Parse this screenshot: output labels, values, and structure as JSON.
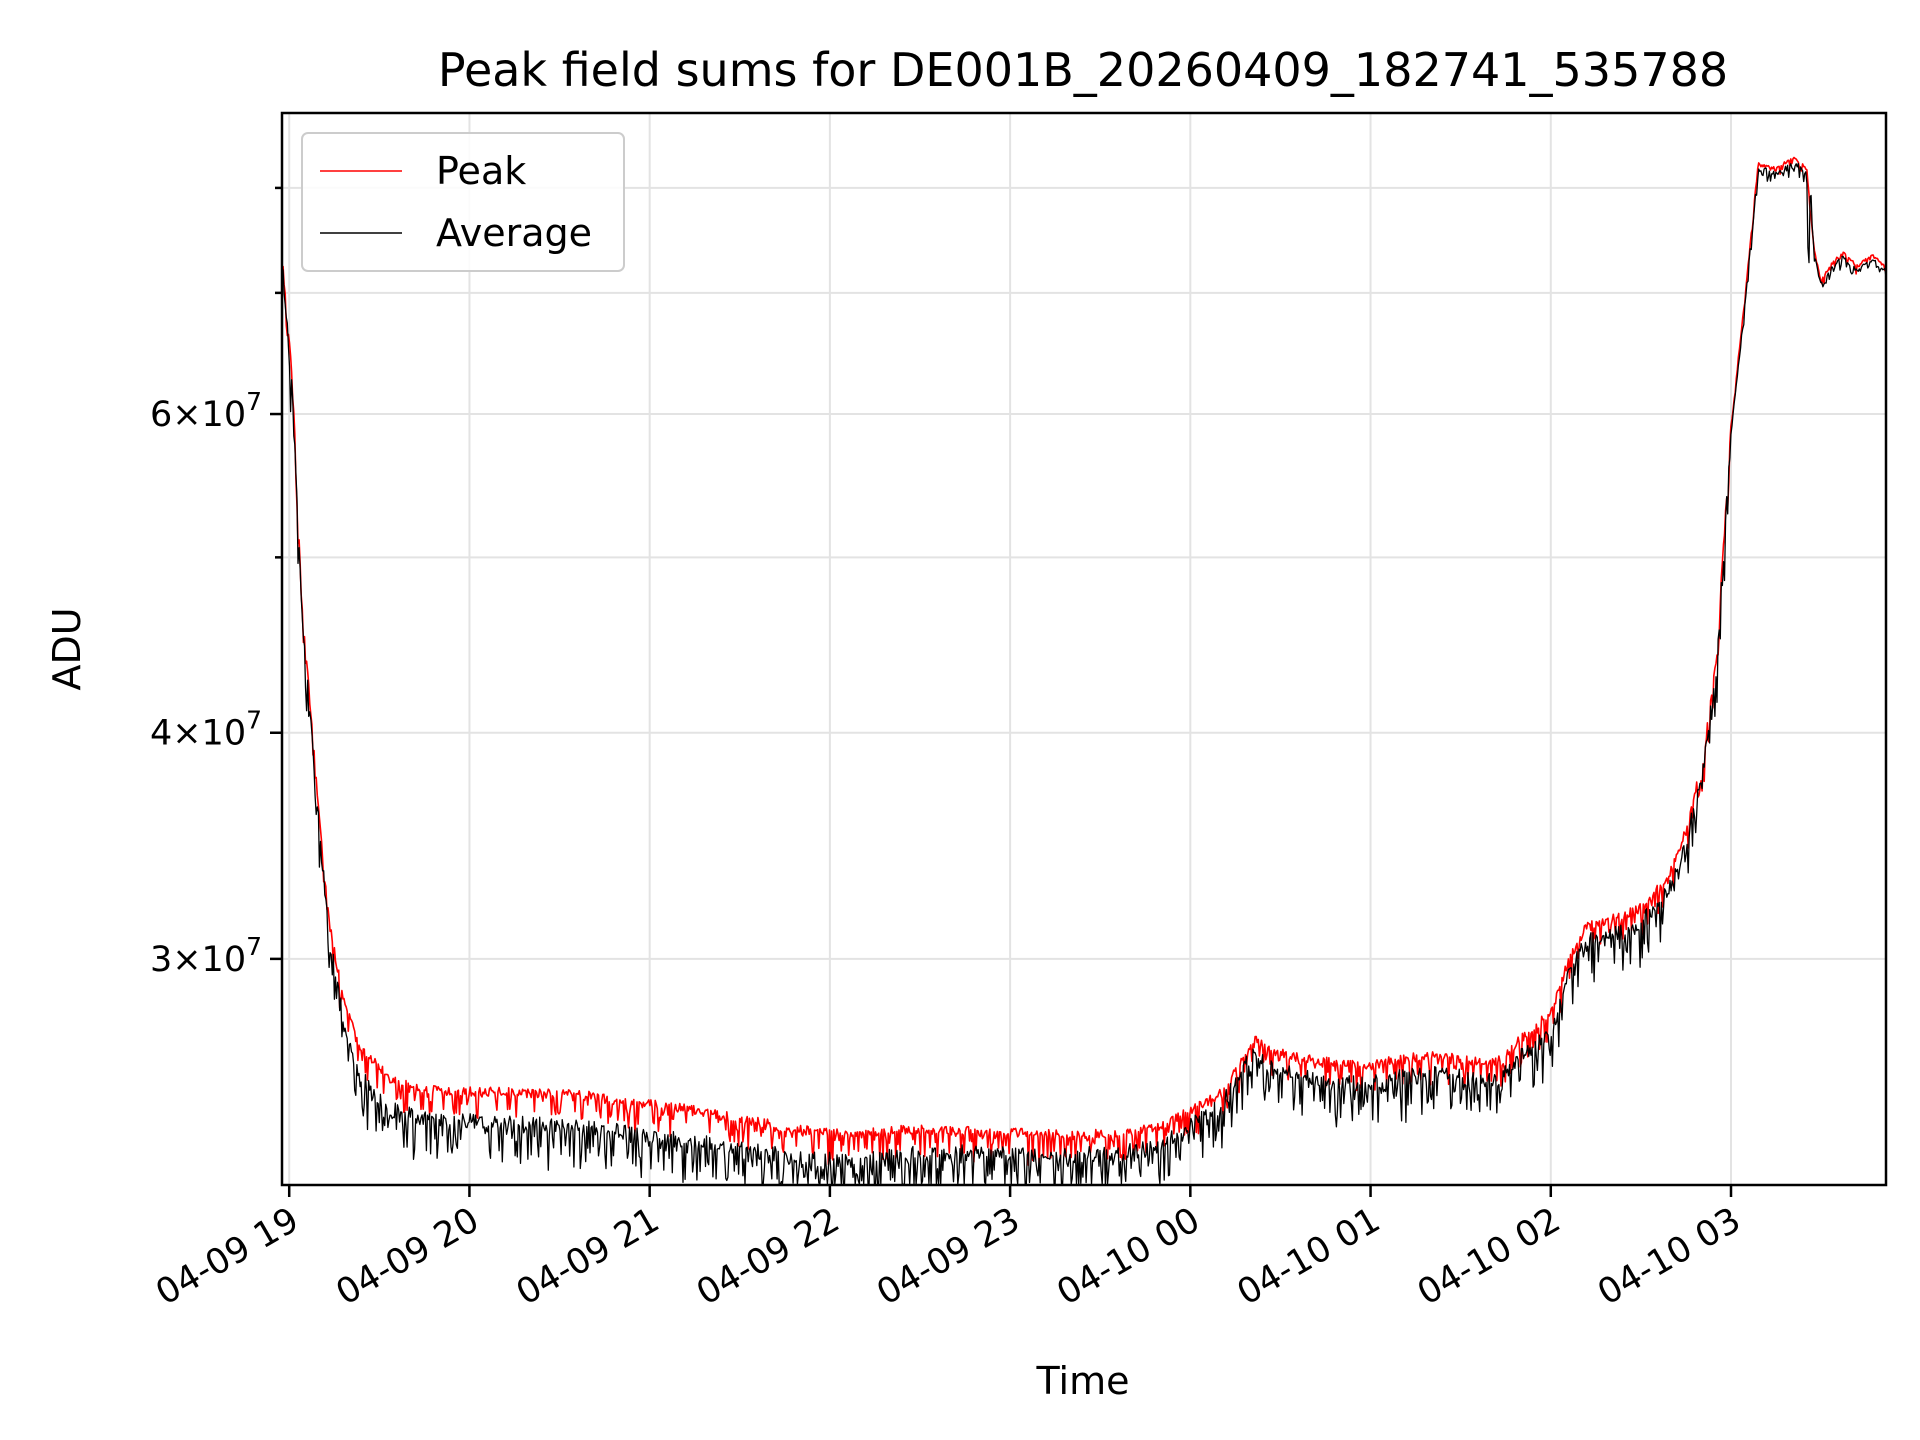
{
  "chart_data": {
    "type": "line",
    "title": "Peak field sums for DE001B_20260409_182741_535788",
    "xlabel": "Time",
    "ylabel": "ADU",
    "yscale": "log",
    "ylim": [
      22500000,
      88000000
    ],
    "xlim_hours": [
      18.96,
      27.86
    ],
    "grid": true,
    "legend_position": "upper-left",
    "x_ticks": [
      {
        "hour": 19,
        "label": "04-09 19"
      },
      {
        "hour": 20,
        "label": "04-09 20"
      },
      {
        "hour": 21,
        "label": "04-09 21"
      },
      {
        "hour": 22,
        "label": "04-09 22"
      },
      {
        "hour": 23,
        "label": "04-09 23"
      },
      {
        "hour": 24,
        "label": "04-10 00"
      },
      {
        "hour": 25,
        "label": "04-10 01"
      },
      {
        "hour": 26,
        "label": "04-10 02"
      },
      {
        "hour": 27,
        "label": "04-10 03"
      }
    ],
    "y_major_ticks": [
      {
        "value": 30000000,
        "mantissa": "3",
        "exponent": "7"
      },
      {
        "value": 40000000,
        "mantissa": "4",
        "exponent": "7"
      },
      {
        "value": 60000000,
        "mantissa": "6",
        "exponent": "7"
      }
    ],
    "y_minor_ticks": [
      50000000,
      70000000,
      80000000
    ],
    "series": [
      {
        "name": "Peak",
        "color": "#ff0000",
        "points": [
          [
            18.96,
            73500000
          ],
          [
            19.02,
            62000000
          ],
          [
            19.07,
            47000000
          ],
          [
            19.12,
            41000000
          ],
          [
            19.17,
            35500000
          ],
          [
            19.22,
            31500000
          ],
          [
            19.3,
            28500000
          ],
          [
            19.4,
            26800000
          ],
          [
            19.55,
            25800000
          ],
          [
            19.75,
            25400000
          ],
          [
            20.0,
            25350000
          ],
          [
            20.3,
            25300000
          ],
          [
            20.6,
            25250000
          ],
          [
            20.9,
            25000000
          ],
          [
            21.2,
            24800000
          ],
          [
            21.5,
            24500000
          ],
          [
            21.8,
            24150000
          ],
          [
            22.1,
            24000000
          ],
          [
            22.4,
            24150000
          ],
          [
            22.7,
            24100000
          ],
          [
            23.0,
            24050000
          ],
          [
            23.3,
            24000000
          ],
          [
            23.6,
            24050000
          ],
          [
            23.85,
            24250000
          ],
          [
            24.0,
            24750000
          ],
          [
            24.15,
            25200000
          ],
          [
            24.25,
            26000000
          ],
          [
            24.35,
            27100000
          ],
          [
            24.45,
            26700000
          ],
          [
            24.6,
            26450000
          ],
          [
            24.8,
            26300000
          ],
          [
            25.0,
            26200000
          ],
          [
            25.2,
            26450000
          ],
          [
            25.4,
            26550000
          ],
          [
            25.55,
            26350000
          ],
          [
            25.7,
            26300000
          ],
          [
            25.85,
            27200000
          ],
          [
            26.0,
            28000000
          ],
          [
            26.1,
            30000000
          ],
          [
            26.2,
            31300000
          ],
          [
            26.35,
            31600000
          ],
          [
            26.5,
            32000000
          ],
          [
            26.65,
            33300000
          ],
          [
            26.75,
            35300000
          ],
          [
            26.85,
            39000000
          ],
          [
            26.92,
            44000000
          ],
          [
            27.0,
            59000000
          ],
          [
            27.08,
            70000000
          ],
          [
            27.15,
            82500000
          ],
          [
            27.25,
            82000000
          ],
          [
            27.35,
            83200000
          ],
          [
            27.42,
            82000000
          ],
          [
            27.46,
            74000000
          ],
          [
            27.5,
            71000000
          ],
          [
            27.55,
            72500000
          ],
          [
            27.62,
            73800000
          ],
          [
            27.7,
            72400000
          ],
          [
            27.78,
            73500000
          ],
          [
            27.86,
            72400000
          ]
        ]
      },
      {
        "name": "Average",
        "color": "#000000",
        "points": [
          [
            18.96,
            73000000
          ],
          [
            19.02,
            61500000
          ],
          [
            19.07,
            46500000
          ],
          [
            19.12,
            40500000
          ],
          [
            19.17,
            35000000
          ],
          [
            19.22,
            31000000
          ],
          [
            19.3,
            27800000
          ],
          [
            19.4,
            25800000
          ],
          [
            19.55,
            24800000
          ],
          [
            19.75,
            24500000
          ],
          [
            20.0,
            24400000
          ],
          [
            20.3,
            24350000
          ],
          [
            20.6,
            24200000
          ],
          [
            20.9,
            24050000
          ],
          [
            21.2,
            23800000
          ],
          [
            21.5,
            23600000
          ],
          [
            21.8,
            23300000
          ],
          [
            22.1,
            23200000
          ],
          [
            22.4,
            23400000
          ],
          [
            22.7,
            23450000
          ],
          [
            23.0,
            23400000
          ],
          [
            23.3,
            23350000
          ],
          [
            23.6,
            23450000
          ],
          [
            23.85,
            23700000
          ],
          [
            24.0,
            24300000
          ],
          [
            24.15,
            24800000
          ],
          [
            24.25,
            25700000
          ],
          [
            24.35,
            26650000
          ],
          [
            24.45,
            26100000
          ],
          [
            24.6,
            25850000
          ],
          [
            24.8,
            25600000
          ],
          [
            25.0,
            25600000
          ],
          [
            25.2,
            25850000
          ],
          [
            25.4,
            25950000
          ],
          [
            25.55,
            25750000
          ],
          [
            25.7,
            25650000
          ],
          [
            25.85,
            26600000
          ],
          [
            26.0,
            27300000
          ],
          [
            26.1,
            29400000
          ],
          [
            26.2,
            30700000
          ],
          [
            26.35,
            31000000
          ],
          [
            26.5,
            31400000
          ],
          [
            26.65,
            32700000
          ],
          [
            26.75,
            34700000
          ],
          [
            26.85,
            38500000
          ],
          [
            26.92,
            43500000
          ],
          [
            27.0,
            58500000
          ],
          [
            27.08,
            69500000
          ],
          [
            27.15,
            82000000
          ],
          [
            27.25,
            81500000
          ],
          [
            27.35,
            82700000
          ],
          [
            27.42,
            81500000
          ],
          [
            27.43,
            71000000
          ],
          [
            27.44,
            81000000
          ],
          [
            27.46,
            73500000
          ],
          [
            27.5,
            70800000
          ],
          [
            27.55,
            72000000
          ],
          [
            27.62,
            73300000
          ],
          [
            27.7,
            72000000
          ],
          [
            27.78,
            73000000
          ],
          [
            27.86,
            72000000
          ]
        ]
      }
    ]
  }
}
